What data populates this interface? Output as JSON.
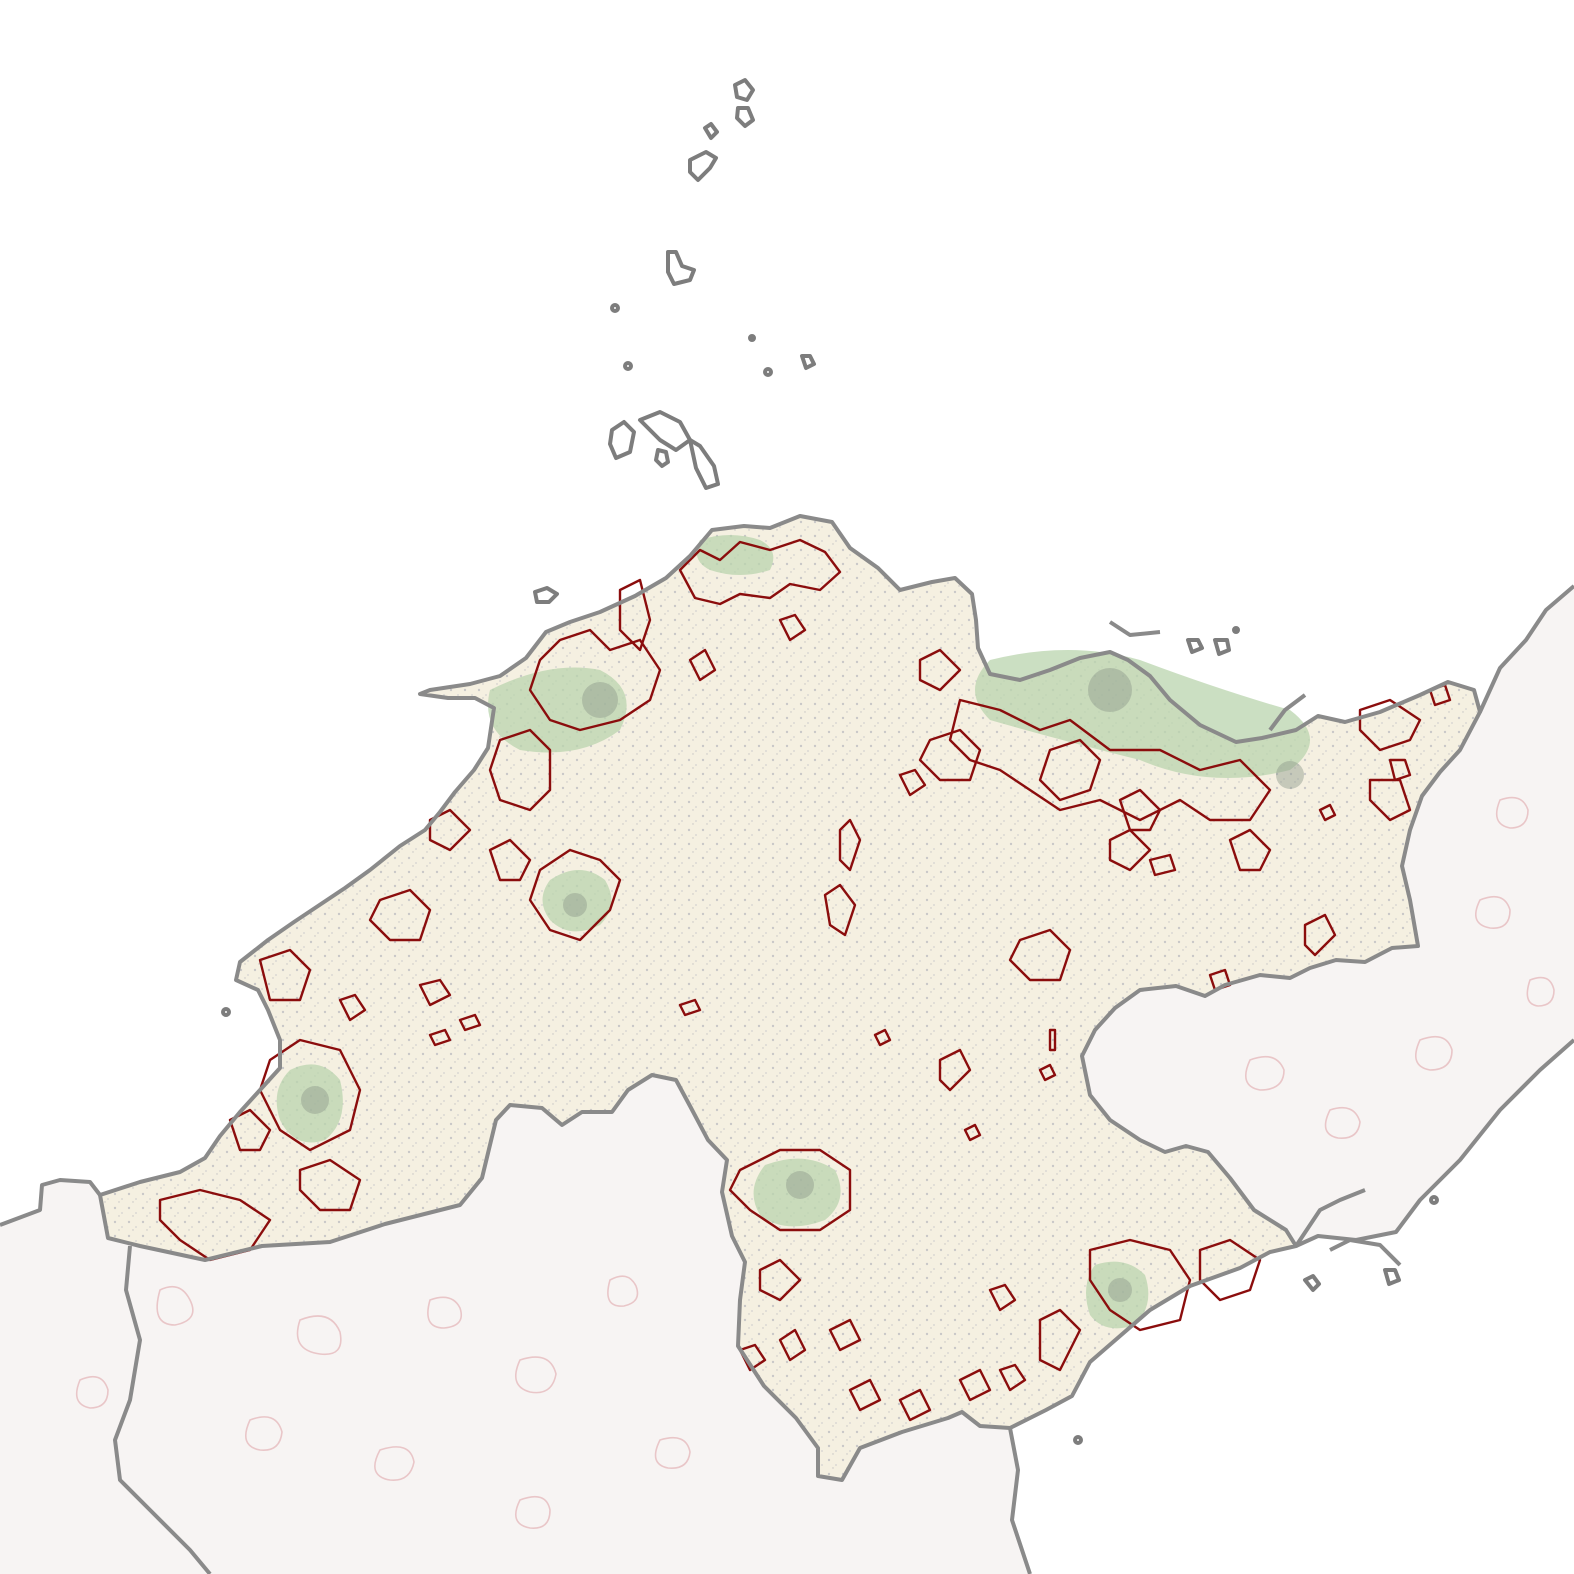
{
  "map": {
    "colors": {
      "background": "#ffffff",
      "focus_region": "#f5f0e1",
      "neighbor_region": "#f7f4f3",
      "border": "#8a8a8a",
      "urban_outline": "#8b0d0d",
      "urban_fill": "#b9d4ae",
      "settlement_dots": "#a5a7b3",
      "faint_outline": "#e9c6c8"
    }
  }
}
